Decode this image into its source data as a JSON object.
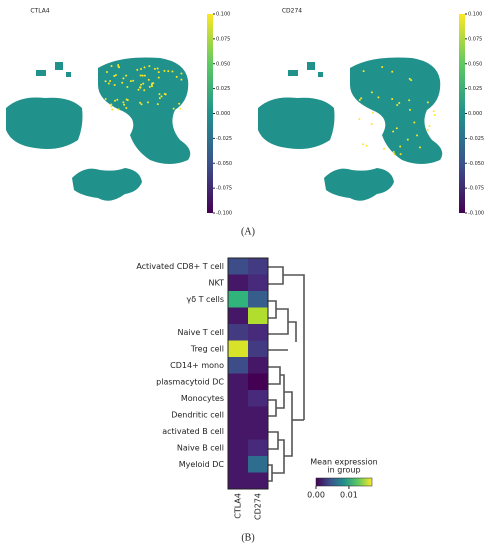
{
  "panel_labels": [
    "(A)",
    "(B)"
  ],
  "chart_data": [
    {
      "type": "umap",
      "title": "CTLA4",
      "clim": [
        -0.1,
        0.1
      ],
      "cticks": [
        {
          "value": 0.1,
          "label": "0.100"
        },
        {
          "value": 0.075,
          "label": "0.075"
        },
        {
          "value": 0.05,
          "label": "0.050"
        },
        {
          "value": 0.025,
          "label": "0.025"
        },
        {
          "value": 0,
          "label": "0.000"
        },
        {
          "value": -0.025,
          "label": "-0.025"
        },
        {
          "value": -0.05,
          "label": "-0.050"
        },
        {
          "value": -0.075,
          "label": "-0.075"
        },
        {
          "value": -0.1,
          "label": "-0.100"
        }
      ]
    },
    {
      "type": "umap",
      "title": "CD274",
      "clim": [
        -0.1,
        0.1
      ],
      "cticks": [
        {
          "value": 0.1,
          "label": "0.100"
        },
        {
          "value": 0.075,
          "label": "0.075"
        },
        {
          "value": 0.05,
          "label": "0.050"
        },
        {
          "value": 0.025,
          "label": "0.025"
        },
        {
          "value": 0,
          "label": "0.000"
        },
        {
          "value": -0.025,
          "label": "-0.025"
        },
        {
          "value": -0.05,
          "label": "-0.050"
        },
        {
          "value": -0.075,
          "label": "-0.075"
        },
        {
          "value": -0.1,
          "label": "-0.100"
        }
      ]
    },
    {
      "type": "heatmap",
      "categories": [
        "Activated CD8+ T cell",
        "NKT",
        "γδ T cells",
        null,
        "Naive T cell",
        "Treg cell",
        "CD14+ mono",
        "plasmacytoid DC",
        "Monocytes",
        "Dendritic cell",
        "activated B cell",
        "Naive B cell",
        "Myeloid DC",
        null
      ],
      "series": [
        {
          "name": "CTLA4",
          "values": [
            0.004,
            0.001,
            0.011,
            0.001,
            0.003,
            0.016,
            0.004,
            0.001,
            0.001,
            0.001,
            0.001,
            0.001,
            0.001,
            0.001
          ]
        },
        {
          "name": "CD274",
          "values": [
            0.003,
            0.002,
            0.005,
            0.015,
            0.002,
            0.003,
            0.001,
            0.0,
            0.002,
            0.001,
            0.001,
            0.002,
            0.006,
            0.001
          ]
        }
      ],
      "colorbar_label": [
        "Mean expression",
        "in group"
      ],
      "clim": [
        0,
        0.017
      ],
      "cticks": [
        {
          "value": 0,
          "label": "0.00"
        },
        0.01
      ]
    }
  ]
}
